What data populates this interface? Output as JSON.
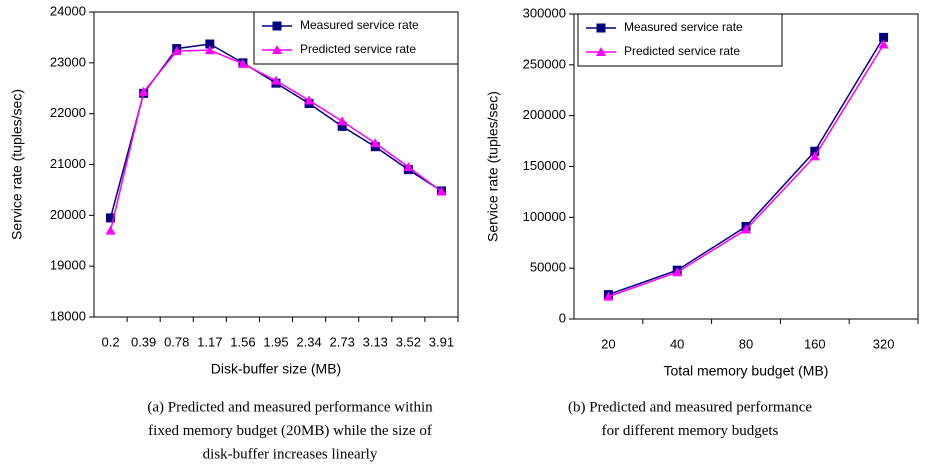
{
  "chart_data": [
    {
      "type": "line",
      "y_label": "Service rate (tuples/sec)",
      "x_label": "Disk-buffer size (MB)",
      "caption": [
        "(a) Predicted and measured performance within",
        "fixed memory budget (20MB) while the size of",
        "disk-buffer increases linearly"
      ],
      "categories": [
        "0.2",
        "0.39",
        "0.78",
        "1.17",
        "1.56",
        "1.95",
        "2.34",
        "2.73",
        "3.13",
        "3.52",
        "3.91"
      ],
      "series": [
        {
          "name": "Measured service rate",
          "color": "#000080",
          "marker": "square",
          "values": [
            19950,
            22400,
            23280,
            23370,
            23000,
            22600,
            22200,
            21750,
            21350,
            20900,
            20480
          ]
        },
        {
          "name": "Predicted service rate",
          "color": "#ff00ff",
          "marker": "triangle",
          "values": [
            19700,
            22430,
            23230,
            23250,
            22980,
            22650,
            22260,
            21850,
            21420,
            20950,
            20470
          ]
        }
      ],
      "ylim": [
        18000,
        24000
      ],
      "yticks": [
        18000,
        19000,
        20000,
        21000,
        22000,
        23000,
        24000
      ],
      "grid": false,
      "legend": "upper right"
    },
    {
      "type": "line",
      "y_label": "Service rate (tuples/sec)",
      "x_label": "Total memory budget (MB)",
      "caption": [
        "(b) Predicted and measured performance",
        "for different memory budgets"
      ],
      "categories": [
        "20",
        "40",
        "80",
        "160",
        "320"
      ],
      "series": [
        {
          "name": "Measured service rate",
          "color": "#000080",
          "marker": "square",
          "values": [
            24000,
            48000,
            91000,
            165000,
            277000
          ]
        },
        {
          "name": "Predicted service rate",
          "color": "#ff00ff",
          "marker": "triangle",
          "values": [
            22000,
            46000,
            88000,
            160000,
            270000
          ]
        }
      ],
      "ylim": [
        0,
        300000
      ],
      "yticks": [
        0,
        50000,
        100000,
        150000,
        200000,
        250000,
        300000
      ],
      "grid": false,
      "legend": "upper left"
    }
  ]
}
